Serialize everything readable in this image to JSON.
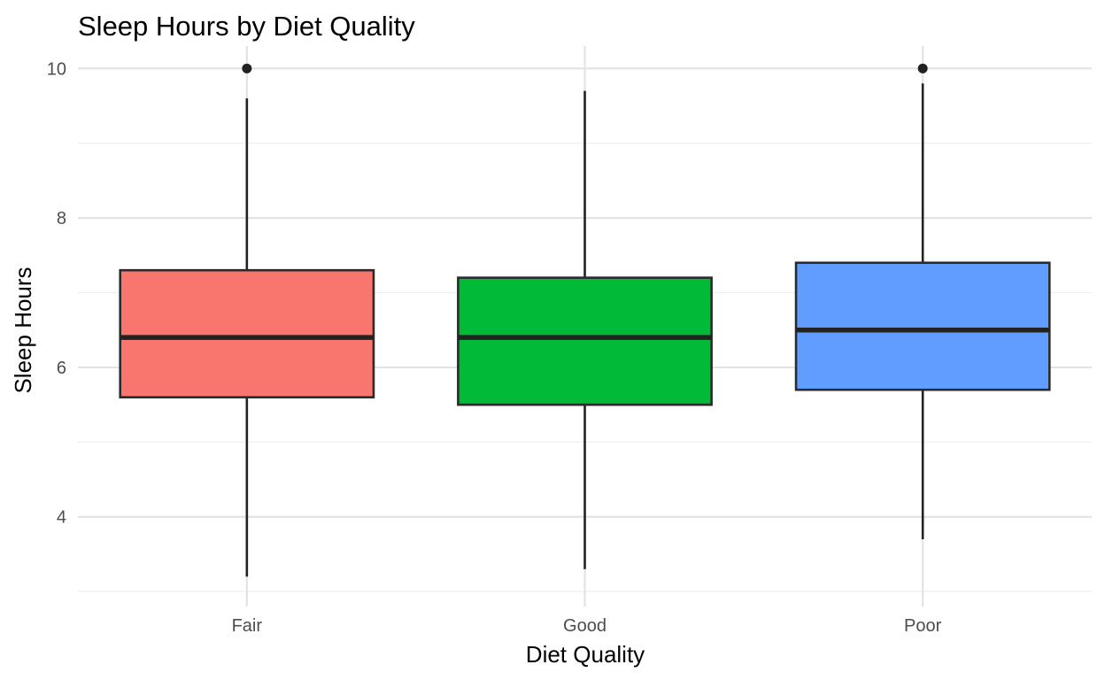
{
  "chart_data": {
    "type": "boxplot",
    "title": "Sleep Hours by Diet Quality",
    "xlabel": "Diet Quality",
    "ylabel": "Sleep Hours",
    "ylim": [
      2.8,
      10.3
    ],
    "y_ticks": [
      4,
      6,
      8,
      10
    ],
    "y_tick_labels": [
      "4",
      "6",
      "8",
      "10"
    ],
    "grid": true,
    "legend": "none",
    "categories": [
      "Fair",
      "Good",
      "Poor"
    ],
    "boxes": [
      {
        "category": "Fair",
        "min": 3.2,
        "q1": 5.6,
        "median": 6.4,
        "q3": 7.3,
        "max": 9.6,
        "outliers": [
          10.0
        ],
        "color": "#F8766D"
      },
      {
        "category": "Good",
        "min": 3.3,
        "q1": 5.5,
        "median": 6.4,
        "q3": 7.2,
        "max": 9.7,
        "outliers": [],
        "color": "#00BA38"
      },
      {
        "category": "Poor",
        "min": 3.7,
        "q1": 5.7,
        "median": 6.5,
        "q3": 7.4,
        "max": 9.8,
        "outliers": [
          10.0
        ],
        "color": "#619CFF"
      }
    ]
  }
}
